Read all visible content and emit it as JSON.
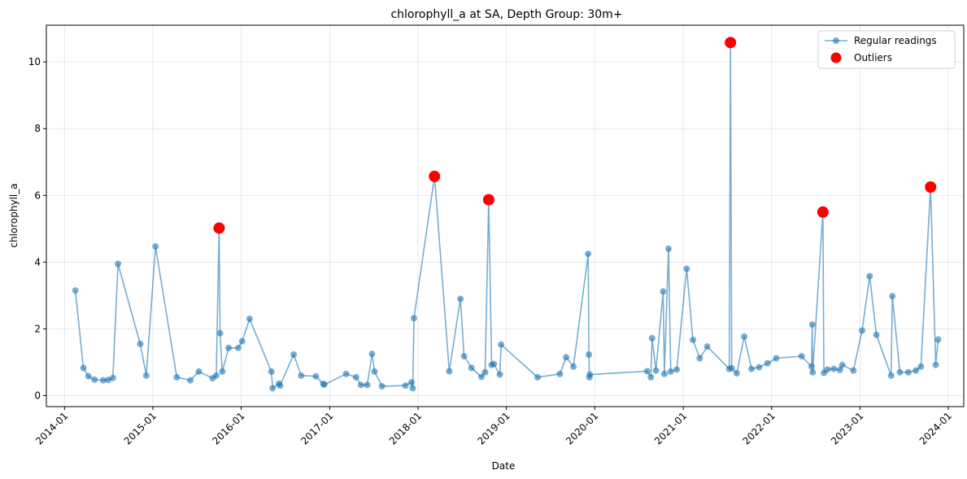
{
  "chart_data": {
    "type": "line",
    "title": "chlorophyll_a at SA, Depth Group: 30m+",
    "xlabel": "Date",
    "ylabel": "chlorophyll_a",
    "xlim": [
      "2013-10-18",
      "2024-03-05"
    ],
    "ylim": [
      -0.33,
      11.1
    ],
    "x_ticks": [
      "2014-01",
      "2015-01",
      "2016-01",
      "2017-01",
      "2018-01",
      "2019-01",
      "2020-01",
      "2021-01",
      "2022-01",
      "2023-01",
      "2024-01"
    ],
    "y_ticks": [
      0,
      2,
      4,
      6,
      8,
      10
    ],
    "grid": true,
    "legend_position": "top-right",
    "colors": {
      "regular": "#1f77b4",
      "outliers": "#ff0000"
    },
    "series": [
      {
        "name": "Regular readings",
        "kind": "line-marker",
        "points": [
          [
            "2014-02-15",
            3.15
          ],
          [
            "2014-03-20",
            0.83
          ],
          [
            "2014-04-10",
            0.58
          ],
          [
            "2014-05-05",
            0.48
          ],
          [
            "2014-06-10",
            0.46
          ],
          [
            "2014-07-01",
            0.47
          ],
          [
            "2014-07-20",
            0.53
          ],
          [
            "2014-08-10",
            3.95
          ],
          [
            "2014-11-10",
            1.55
          ],
          [
            "2014-12-05",
            0.6
          ],
          [
            "2015-01-12",
            4.47
          ],
          [
            "2015-04-10",
            0.55
          ],
          [
            "2015-06-05",
            0.46
          ],
          [
            "2015-07-10",
            0.72
          ],
          [
            "2015-09-05",
            0.52
          ],
          [
            "2015-09-20",
            0.6
          ],
          [
            "2015-10-02",
            5.02
          ],
          [
            "2015-10-06",
            1.87
          ],
          [
            "2015-10-15",
            0.72
          ],
          [
            "2015-11-10",
            1.43
          ],
          [
            "2015-12-20",
            1.43
          ],
          [
            "2016-01-05",
            1.63
          ],
          [
            "2016-02-05",
            2.3
          ],
          [
            "2016-05-05",
            0.72
          ],
          [
            "2016-05-10",
            0.22
          ],
          [
            "2016-06-05",
            0.36
          ],
          [
            "2016-06-10",
            0.3
          ],
          [
            "2016-08-05",
            1.23
          ],
          [
            "2016-09-05",
            0.6
          ],
          [
            "2016-11-05",
            0.58
          ],
          [
            "2016-12-05",
            0.35
          ],
          [
            "2016-12-10",
            0.33
          ],
          [
            "2017-03-10",
            0.65
          ],
          [
            "2017-04-20",
            0.55
          ],
          [
            "2017-05-10",
            0.32
          ],
          [
            "2017-06-05",
            0.32
          ],
          [
            "2017-06-25",
            1.25
          ],
          [
            "2017-07-05",
            0.72
          ],
          [
            "2017-08-05",
            0.28
          ],
          [
            "2017-11-10",
            0.3
          ],
          [
            "2017-12-05",
            0.4
          ],
          [
            "2017-12-10",
            0.22
          ],
          [
            "2017-12-15",
            2.32
          ],
          [
            "2018-03-10",
            6.57
          ],
          [
            "2018-05-10",
            0.73
          ],
          [
            "2018-06-25",
            2.9
          ],
          [
            "2018-07-10",
            1.18
          ],
          [
            "2018-08-10",
            0.83
          ],
          [
            "2018-09-20",
            0.56
          ],
          [
            "2018-10-05",
            0.7
          ],
          [
            "2018-10-20",
            5.87
          ],
          [
            "2018-11-01",
            0.92
          ],
          [
            "2018-11-10",
            0.95
          ],
          [
            "2018-12-05",
            0.63
          ],
          [
            "2018-12-10",
            1.53
          ],
          [
            "2019-05-10",
            0.55
          ],
          [
            "2019-08-10",
            0.65
          ],
          [
            "2019-09-05",
            1.15
          ],
          [
            "2019-10-05",
            0.87
          ],
          [
            "2019-12-05",
            4.25
          ],
          [
            "2019-12-08",
            1.23
          ],
          [
            "2019-12-10",
            0.55
          ],
          [
            "2019-12-12",
            0.63
          ],
          [
            "2020-08-05",
            0.73
          ],
          [
            "2020-08-20",
            0.55
          ],
          [
            "2020-08-25",
            1.72
          ],
          [
            "2020-09-10",
            0.75
          ],
          [
            "2020-10-10",
            3.12
          ],
          [
            "2020-10-15",
            0.65
          ],
          [
            "2020-11-01",
            4.4
          ],
          [
            "2020-11-10",
            0.72
          ],
          [
            "2020-12-05",
            0.78
          ],
          [
            "2021-01-15",
            3.8
          ],
          [
            "2021-02-10",
            1.67
          ],
          [
            "2021-03-10",
            1.12
          ],
          [
            "2021-04-10",
            1.47
          ],
          [
            "2021-07-10",
            0.8
          ],
          [
            "2021-07-15",
            10.58
          ],
          [
            "2021-07-20",
            0.82
          ],
          [
            "2021-08-10",
            0.67
          ],
          [
            "2021-09-10",
            1.77
          ],
          [
            "2021-10-10",
            0.8
          ],
          [
            "2021-11-10",
            0.85
          ],
          [
            "2021-12-15",
            0.97
          ],
          [
            "2022-01-20",
            1.12
          ],
          [
            "2022-05-05",
            1.18
          ],
          [
            "2022-06-15",
            0.87
          ],
          [
            "2022-06-18",
            2.13
          ],
          [
            "2022-06-20",
            0.7
          ],
          [
            "2022-08-01",
            5.5
          ],
          [
            "2022-08-05",
            0.68
          ],
          [
            "2022-08-20",
            0.78
          ],
          [
            "2022-09-15",
            0.8
          ],
          [
            "2022-10-10",
            0.77
          ],
          [
            "2022-10-20",
            0.92
          ],
          [
            "2022-12-05",
            0.75
          ],
          [
            "2023-01-10",
            1.95
          ],
          [
            "2023-02-10",
            3.58
          ],
          [
            "2023-03-10",
            1.82
          ],
          [
            "2023-05-10",
            0.6
          ],
          [
            "2023-05-15",
            2.98
          ],
          [
            "2023-06-15",
            0.7
          ],
          [
            "2023-07-20",
            0.7
          ],
          [
            "2023-08-20",
            0.75
          ],
          [
            "2023-09-10",
            0.87
          ],
          [
            "2023-10-20",
            6.25
          ],
          [
            "2023-11-10",
            0.92
          ],
          [
            "2023-11-20",
            1.68
          ]
        ]
      },
      {
        "name": "Outliers",
        "kind": "marker",
        "points": [
          [
            "2015-10-02",
            5.02
          ],
          [
            "2018-03-10",
            6.57
          ],
          [
            "2018-10-20",
            5.87
          ],
          [
            "2021-07-15",
            10.58
          ],
          [
            "2022-08-01",
            5.5
          ],
          [
            "2023-10-20",
            6.25
          ]
        ]
      }
    ]
  }
}
